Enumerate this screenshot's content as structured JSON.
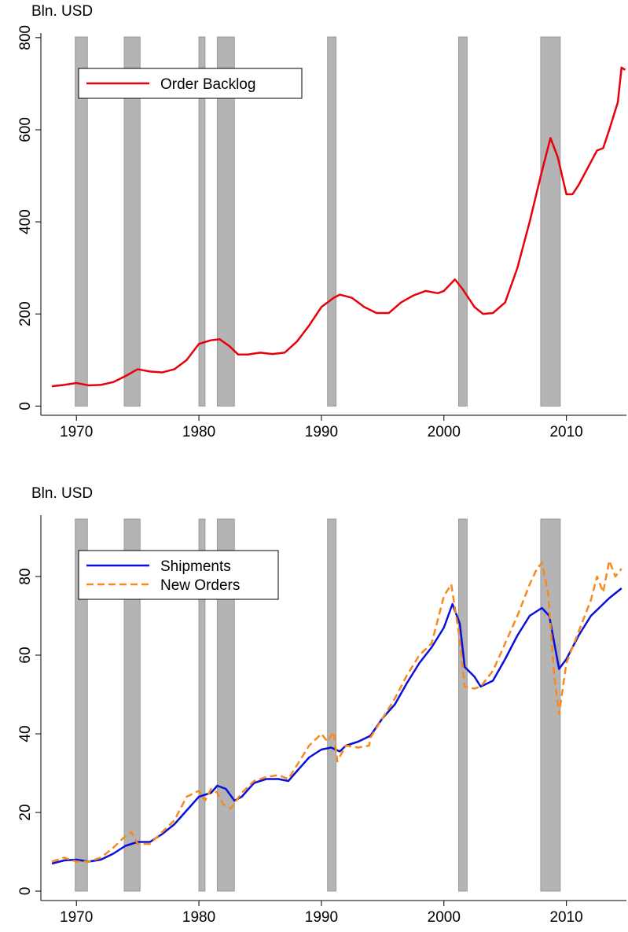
{
  "chart_data": [
    {
      "type": "line",
      "ylabel": "Bln. USD",
      "xlim": [
        1967.1,
        2014.9
      ],
      "xticks": [
        1970,
        1980,
        1990,
        2000,
        2010
      ],
      "ylim": [
        -20,
        810
      ],
      "yticks": [
        0,
        200,
        400,
        600,
        800
      ],
      "legend": "top left",
      "recessions": [
        [
          1969.9,
          1970.9
        ],
        [
          1973.9,
          1975.2
        ],
        [
          1980.0,
          1980.5
        ],
        [
          1981.5,
          1982.9
        ],
        [
          1990.5,
          1991.2
        ],
        [
          2001.2,
          2001.9
        ],
        [
          2007.9,
          2009.5
        ]
      ],
      "series": [
        {
          "name": "Order Backlog",
          "color": "#e8000b",
          "dashed": false,
          "x": [
            1968,
            1969,
            1970,
            1971,
            1972,
            1973,
            1974,
            1975,
            1976,
            1977,
            1978,
            1979,
            1980,
            1981,
            1981.7,
            1982.5,
            1983.2,
            1984,
            1985,
            1986,
            1987,
            1988,
            1989,
            1990,
            1991,
            1991.5,
            1992.5,
            1993.5,
            1994.5,
            1995.5,
            1996.5,
            1997.5,
            1998.5,
            1999.5,
            2000,
            2000.9,
            2001.5,
            2002.5,
            2003.2,
            2004,
            2005,
            2006,
            2007,
            2008,
            2008.7,
            2009.3,
            2010,
            2010.5,
            2011,
            2012,
            2012.5,
            2013,
            2013.5,
            2014.2,
            2014.5,
            2014.8
          ],
          "values": [
            43,
            46,
            50,
            45,
            46,
            52,
            65,
            80,
            75,
            73,
            80,
            100,
            135,
            143,
            145,
            130,
            112,
            112,
            116,
            113,
            116,
            140,
            175,
            215,
            235,
            242,
            235,
            215,
            202,
            202,
            225,
            240,
            250,
            245,
            250,
            275,
            255,
            215,
            200,
            202,
            225,
            300,
            400,
            510,
            582,
            540,
            460,
            460,
            480,
            530,
            555,
            560,
            600,
            660,
            735,
            730
          ]
        }
      ]
    },
    {
      "type": "line",
      "ylabel": "Bln. USD",
      "xlim": [
        1967.1,
        2014.9
      ],
      "xticks": [
        1970,
        1980,
        1990,
        2000,
        2010
      ],
      "ylim": [
        -2.4,
        95.6
      ],
      "yticks": [
        0,
        20,
        40,
        60,
        80
      ],
      "legend": "top left",
      "recessions": [
        [
          1969.9,
          1970.9
        ],
        [
          1973.9,
          1975.2
        ],
        [
          1980.0,
          1980.5
        ],
        [
          1981.5,
          1982.9
        ],
        [
          1990.5,
          1991.2
        ],
        [
          2001.2,
          2001.9
        ],
        [
          2007.9,
          2009.5
        ]
      ],
      "series": [
        {
          "name": "Shipments",
          "color": "#0a10d8",
          "dashed": false,
          "x": [
            1968,
            1969,
            1970,
            1971,
            1972,
            1973,
            1974,
            1975,
            1976,
            1977,
            1978,
            1979,
            1980,
            1981,
            1981.5,
            1982.2,
            1982.9,
            1983.5,
            1984.5,
            1985.5,
            1986.5,
            1987.3,
            1988,
            1989,
            1990,
            1990.8,
            1991.5,
            1992,
            1993,
            1994,
            1995,
            1996,
            1997,
            1998,
            1999,
            2000,
            2000.7,
            2001.3,
            2001.7,
            2002.5,
            2003,
            2004,
            2005,
            2006,
            2007,
            2008,
            2008.6,
            2009.4,
            2010,
            2011,
            2012,
            2013,
            2013.5,
            2014.5
          ],
          "values": [
            7,
            7.8,
            8,
            7.5,
            8,
            9.5,
            11.5,
            12.5,
            12.5,
            14.5,
            17,
            20.5,
            24,
            25,
            26.8,
            26,
            23,
            24,
            27.5,
            28.5,
            28.5,
            28,
            30.5,
            34,
            36,
            36.5,
            35.5,
            37,
            38,
            39.5,
            44,
            47.5,
            53,
            58,
            62,
            67,
            73,
            68,
            57,
            54.5,
            52,
            53.5,
            59,
            65,
            70,
            72,
            70,
            56.5,
            59,
            65,
            70,
            73,
            74.5,
            77
          ]
        },
        {
          "name": "New Orders",
          "color": "#f7891f",
          "dashed": true,
          "x": [
            1968,
            1969,
            1970,
            1971,
            1972,
            1973,
            1974,
            1974.5,
            1975,
            1976,
            1977,
            1978,
            1979,
            1980,
            1980.5,
            1981,
            1981.5,
            1982,
            1982.6,
            1983.5,
            1984.5,
            1985.5,
            1986.5,
            1987.3,
            1988,
            1989,
            1990,
            1990.5,
            1991,
            1991.3,
            1992,
            1993,
            1993.9,
            1994,
            1995,
            1996,
            1997,
            1998,
            1999,
            2000,
            2000.6,
            2001.2,
            2001.7,
            2002.5,
            2003,
            2004,
            2005,
            2006,
            2007,
            2007.6,
            2008,
            2008.5,
            2009,
            2009.4,
            2010,
            2011,
            2012,
            2012.5,
            2013,
            2013.5,
            2014,
            2014.5
          ],
          "values": [
            7.5,
            8.5,
            7.5,
            7.5,
            8.5,
            11,
            14,
            15,
            12,
            12,
            15,
            18,
            24,
            25.5,
            23,
            26,
            25,
            22,
            21,
            25,
            28,
            29,
            29.5,
            28.5,
            32,
            37,
            40,
            38,
            40.5,
            33,
            37,
            36.5,
            37,
            39,
            44,
            49,
            55,
            60,
            63,
            75,
            78,
            66,
            52,
            51.5,
            52,
            56,
            63,
            70,
            78,
            82,
            83.5,
            76,
            55,
            45,
            58,
            66,
            74,
            80,
            76,
            84,
            80,
            82
          ]
        }
      ]
    }
  ]
}
